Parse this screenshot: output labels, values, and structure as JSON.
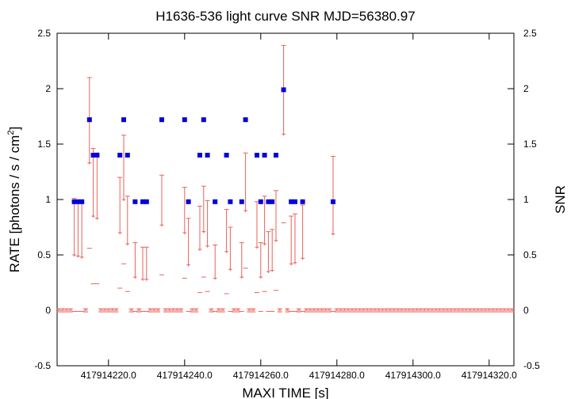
{
  "chart_data": {
    "type": "errorbar-scatter",
    "title": "H1636-536 light curve  SNR MJD=56380.97",
    "xlabel": "MAXI TIME [s]",
    "ylabel": [
      "RATE [photons / s / cm",
      "2",
      "]"
    ],
    "y2label": "SNR",
    "xlim": [
      417914206.5,
      417914326.5
    ],
    "xticks": [
      {
        "value": 417914220,
        "label": "417914220.0"
      },
      {
        "value": 417914240,
        "label": "417914240.0"
      },
      {
        "value": 417914260,
        "label": "417914260.0"
      },
      {
        "value": 417914280,
        "label": "417914280.0"
      },
      {
        "value": 417914300,
        "label": "417914300.0"
      },
      {
        "value": 417914320,
        "label": "417914320.0"
      }
    ],
    "ylim": [
      -0.5,
      2.5
    ],
    "yticks": [
      -0.5,
      0,
      0.5,
      1,
      1.5,
      2,
      2.5
    ],
    "y2lim": [
      -0.5,
      2.5
    ],
    "y2ticks": [
      -0.5,
      0,
      0.5,
      1,
      1.5,
      2,
      2.5
    ],
    "x": [
      417914207,
      417914208,
      417914209,
      417914210,
      417914211,
      417914212,
      417914213,
      417914214,
      417914215,
      417914216,
      417914217,
      417914218,
      417914219,
      417914220,
      417914221,
      417914222,
      417914223,
      417914224,
      417914225,
      417914226,
      417914227,
      417914228,
      417914229,
      417914230,
      417914231,
      417914232,
      417914233,
      417914234,
      417914235,
      417914236,
      417914237,
      417914238,
      417914239,
      417914240,
      417914241,
      417914242,
      417914243,
      417914244,
      417914245,
      417914246,
      417914247,
      417914248,
      417914249,
      417914250,
      417914251,
      417914252,
      417914253,
      417914254,
      417914255,
      417914256,
      417914257,
      417914258,
      417914259,
      417914260,
      417914261,
      417914262,
      417914263,
      417914264,
      417914265,
      417914266,
      417914267,
      417914268,
      417914269,
      417914270,
      417914271,
      417914272,
      417914273,
      417914274,
      417914275,
      417914276,
      417914277,
      417914278,
      417914279,
      417914280,
      417914281,
      417914282,
      417914283,
      417914284,
      417914285,
      417914286,
      417914287,
      417914288,
      417914289,
      417914290,
      417914291,
      417914292,
      417914293,
      417914294,
      417914295,
      417914296,
      417914297,
      417914298,
      417914299,
      417914300,
      417914301,
      417914302,
      417914303,
      417914304,
      417914305,
      417914306,
      417914307,
      417914308,
      417914309,
      417914310,
      417914311,
      417914312,
      417914313,
      417914314,
      417914315,
      417914316,
      417914317,
      417914318,
      417914319,
      417914320,
      417914321,
      417914322,
      417914323,
      417914324,
      417914325,
      417914326
    ],
    "series": [
      {
        "name": "RATE",
        "color": "#e8625a",
        "values": [
          0,
          0,
          0,
          0,
          0.5,
          0.49,
          0.48,
          0,
          1.33,
          0.85,
          0.83,
          0,
          0,
          0,
          0,
          0,
          0.7,
          1.0,
          0.6,
          0,
          0.3,
          0,
          0.28,
          0.28,
          0,
          0,
          0,
          0.77,
          0,
          0,
          0,
          0,
          0,
          0.7,
          0.41,
          0,
          0,
          0.55,
          0.71,
          0.58,
          0,
          0.29,
          0,
          0,
          0.53,
          0.37,
          0,
          0,
          0.3,
          0.9,
          0,
          0,
          0.57,
          0.3,
          0.6,
          0.35,
          0.36,
          0.63,
          0,
          1.59,
          0,
          0.42,
          0.43,
          0,
          0.47,
          0,
          0,
          0,
          0,
          0,
          0,
          0,
          0.69,
          0,
          0,
          0,
          0,
          0,
          0,
          0,
          0,
          0,
          0,
          0,
          0,
          0,
          0,
          0,
          0,
          0,
          0,
          0,
          0,
          0,
          0,
          0,
          0,
          0,
          0,
          0,
          0,
          0,
          0,
          0,
          0,
          0,
          0,
          0,
          0,
          0,
          0,
          0,
          0,
          0,
          0,
          0,
          0,
          0,
          0,
          0
        ],
        "errors": [
          0,
          0,
          0,
          0,
          0.51,
          0.5,
          0.49,
          0,
          0.77,
          0.61,
          0.59,
          0,
          0,
          0,
          0,
          0,
          0.5,
          0.58,
          0.43,
          0,
          0.31,
          0,
          0.29,
          0.29,
          0,
          0,
          0,
          0.45,
          0,
          0,
          0,
          0,
          0,
          0.41,
          0.42,
          0,
          0,
          0.39,
          0.41,
          0.41,
          0,
          0.3,
          0,
          0,
          0.38,
          0.38,
          0,
          0,
          0.31,
          0.52,
          0,
          0,
          0.41,
          0.31,
          0.43,
          0.36,
          0.37,
          0.45,
          0,
          0.8,
          0,
          0.43,
          0.44,
          0,
          0.48,
          0,
          0,
          0,
          0,
          0,
          0,
          0,
          0.7,
          0,
          0,
          0,
          0,
          0,
          0,
          0,
          0,
          0,
          0,
          0,
          0,
          0,
          0,
          0,
          0,
          0,
          0,
          0,
          0,
          0,
          0,
          0,
          0,
          0,
          0,
          0,
          0,
          0,
          0,
          0,
          0,
          0,
          0,
          0,
          0,
          0,
          0,
          0,
          0,
          0,
          0,
          0,
          0,
          0,
          0,
          0
        ]
      },
      {
        "name": "SNR",
        "color": "#0000dd",
        "axis": "y2",
        "values": [
          null,
          null,
          null,
          null,
          0.98,
          0.98,
          0.98,
          null,
          1.72,
          1.4,
          1.4,
          null,
          null,
          null,
          null,
          null,
          1.4,
          1.72,
          1.4,
          null,
          0.98,
          null,
          0.98,
          0.98,
          null,
          null,
          null,
          1.72,
          null,
          null,
          null,
          null,
          null,
          1.72,
          0.98,
          null,
          null,
          1.4,
          1.72,
          1.4,
          null,
          0.98,
          null,
          null,
          1.4,
          0.98,
          null,
          null,
          0.98,
          1.72,
          null,
          null,
          1.4,
          0.98,
          1.4,
          0.98,
          0.98,
          1.4,
          null,
          1.99,
          null,
          0.98,
          0.98,
          null,
          0.98,
          null,
          null,
          null,
          null,
          null,
          null,
          null,
          0.98,
          null,
          null,
          null,
          null,
          null,
          null,
          null,
          null,
          null,
          null,
          null,
          null,
          null,
          null,
          null,
          null,
          null,
          null,
          null,
          null,
          null,
          null,
          null,
          null,
          null,
          null,
          null,
          null,
          null,
          null,
          null,
          null,
          null,
          null,
          null,
          null,
          null,
          null,
          null,
          null,
          null,
          null,
          null,
          null,
          null,
          null,
          null
        ]
      }
    ]
  }
}
